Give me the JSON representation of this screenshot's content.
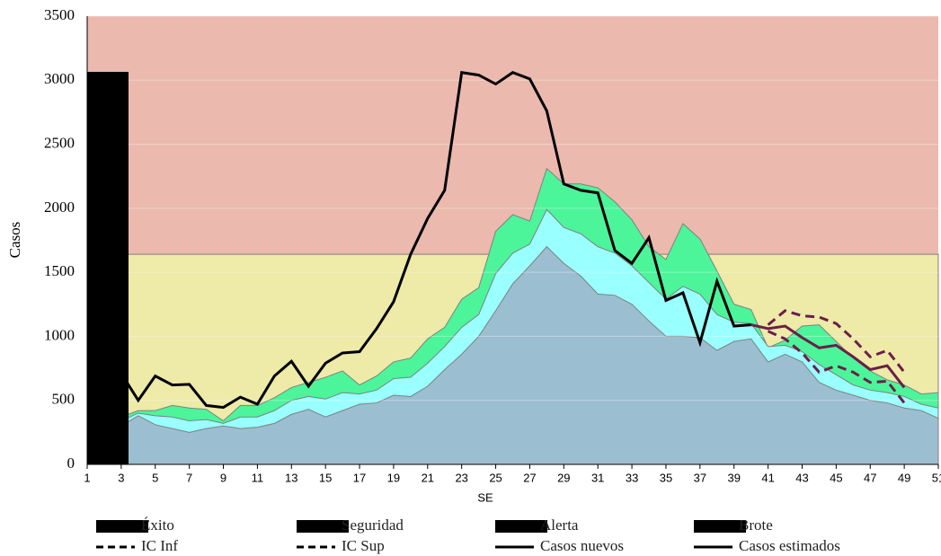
{
  "chart_data": {
    "type": "line",
    "xlabel": "SE",
    "ylabel": "Casos",
    "xlim": [
      1,
      51
    ],
    "xticks": [
      1,
      3,
      5,
      7,
      9,
      11,
      13,
      15,
      17,
      19,
      21,
      23,
      25,
      27,
      29,
      31,
      33,
      35,
      37,
      39,
      41,
      43,
      45,
      47,
      49,
      51
    ],
    "ylim": [
      0,
      3500
    ],
    "yticks": [
      0,
      500,
      1000,
      1500,
      2000,
      2500,
      3000,
      3500
    ],
    "grid": true,
    "series": [
      {
        "name": "Éxito",
        "color": "#9bbfd1",
        "style": "area",
        "x": [
          3,
          4,
          5,
          6,
          7,
          8,
          9,
          10,
          11,
          12,
          13,
          14,
          15,
          16,
          17,
          18,
          19,
          20,
          21,
          22,
          23,
          24,
          25,
          26,
          27,
          28,
          29,
          30,
          31,
          32,
          33,
          34,
          35,
          36,
          37,
          38,
          39,
          40,
          41,
          42,
          43,
          44,
          45,
          46,
          47,
          48,
          49,
          50,
          51
        ],
        "values": [
          300,
          380,
          310,
          280,
          250,
          280,
          300,
          280,
          290,
          320,
          390,
          430,
          370,
          420,
          470,
          480,
          540,
          530,
          610,
          740,
          860,
          1000,
          1200,
          1410,
          1550,
          1700,
          1570,
          1470,
          1330,
          1320,
          1250,
          1120,
          1000,
          1000,
          990,
          890,
          960,
          980,
          800,
          860,
          800,
          640,
          580,
          540,
          500,
          480,
          440,
          420,
          360
        ]
      },
      {
        "name": "Seguridad",
        "color": "#99ffff",
        "style": "area",
        "x": [
          3,
          4,
          5,
          6,
          7,
          8,
          9,
          10,
          11,
          12,
          13,
          14,
          15,
          16,
          17,
          18,
          19,
          20,
          21,
          22,
          23,
          24,
          25,
          26,
          27,
          28,
          29,
          30,
          31,
          32,
          33,
          34,
          35,
          36,
          37,
          38,
          39,
          40,
          41,
          42,
          43,
          44,
          45,
          46,
          47,
          48,
          49,
          50,
          51
        ],
        "values": [
          340,
          400,
          380,
          370,
          340,
          350,
          320,
          370,
          370,
          420,
          500,
          530,
          510,
          560,
          550,
          580,
          670,
          680,
          790,
          920,
          1070,
          1170,
          1490,
          1650,
          1720,
          1990,
          1850,
          1800,
          1700,
          1650,
          1550,
          1420,
          1290,
          1390,
          1330,
          1170,
          1110,
          1100,
          920,
          930,
          880,
          780,
          700,
          620,
          580,
          560,
          530,
          470,
          440
        ]
      },
      {
        "name": "Alerta",
        "color": "#4cf59a",
        "style": "area",
        "x": [
          3,
          4,
          5,
          6,
          7,
          8,
          9,
          10,
          11,
          12,
          13,
          14,
          15,
          16,
          17,
          18,
          19,
          20,
          21,
          22,
          23,
          24,
          25,
          26,
          27,
          28,
          29,
          30,
          31,
          32,
          33,
          34,
          35,
          36,
          37,
          38,
          39,
          40,
          41,
          42,
          43,
          44,
          45,
          46,
          47,
          48,
          49,
          50,
          51
        ],
        "values": [
          370,
          420,
          420,
          460,
          440,
          430,
          340,
          460,
          460,
          520,
          600,
          640,
          680,
          730,
          620,
          690,
          800,
          830,
          980,
          1070,
          1290,
          1380,
          1820,
          1950,
          1900,
          2310,
          2190,
          2190,
          2160,
          2050,
          1910,
          1700,
          1600,
          1880,
          1760,
          1510,
          1250,
          1210,
          910,
          970,
          1080,
          1090,
          960,
          830,
          730,
          660,
          620,
          550,
          560
        ]
      },
      {
        "name": "Brote",
        "color": "#eeeaa8",
        "style": "area",
        "x": [
          1,
          51
        ],
        "values": [
          1640,
          1640
        ]
      },
      {
        "name": "IC Inf",
        "color": "#6b1e4a",
        "style": "dashed",
        "x": [
          41,
          42,
          43,
          44,
          45,
          46,
          47,
          48,
          49
        ],
        "values": [
          1040,
          980,
          870,
          720,
          770,
          720,
          640,
          650,
          480
        ]
      },
      {
        "name": "IC Sup",
        "color": "#6b1e4a",
        "style": "dashed",
        "x": [
          41,
          42,
          43,
          44,
          45,
          46,
          47,
          48,
          49
        ],
        "values": [
          1090,
          1200,
          1160,
          1150,
          1100,
          980,
          840,
          890,
          720
        ]
      },
      {
        "name": "Casos nuevos",
        "color": "#000000",
        "style": "solid",
        "x": [
          3,
          4,
          5,
          6,
          7,
          8,
          9,
          10,
          11,
          12,
          13,
          14,
          15,
          16,
          17,
          18,
          19,
          20,
          21,
          22,
          23,
          24,
          25,
          26,
          27,
          28,
          29,
          30,
          31,
          32,
          33,
          34,
          35,
          36,
          37,
          38,
          39,
          40
        ],
        "values": [
          710,
          500,
          690,
          620,
          625,
          460,
          445,
          525,
          470,
          690,
          805,
          610,
          790,
          870,
          880,
          1060,
          1270,
          1640,
          1920,
          2140,
          3060,
          3040,
          2970,
          3060,
          3010,
          2760,
          2190,
          2140,
          2120,
          1670,
          1570,
          1770,
          1280,
          1340,
          950,
          1430,
          1080,
          1090
        ]
      },
      {
        "name": "Casos estimados",
        "color": "#6b1e4a",
        "style": "solid",
        "x": [
          40,
          41,
          42,
          43,
          44,
          45,
          46,
          47,
          48,
          49
        ],
        "values": [
          1090,
          1060,
          1080,
          990,
          910,
          930,
          840,
          740,
          770,
          600
        ]
      }
    ]
  }
}
